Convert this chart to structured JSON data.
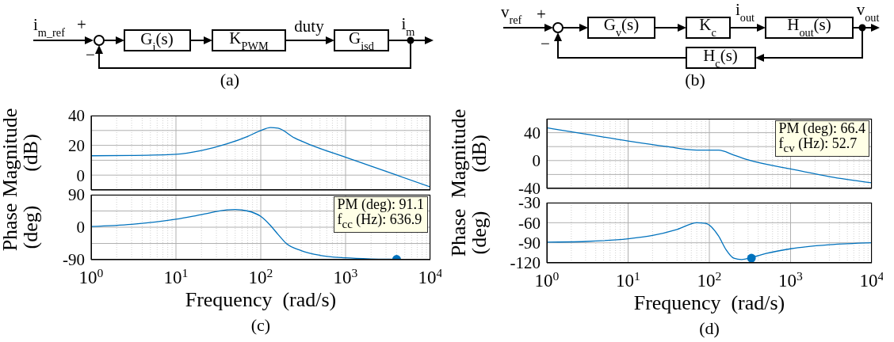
{
  "chart_data": [
    {
      "type": "other",
      "title": "(a)",
      "annotations": [
        "i$_{m_ref}$",
        "+",
        "−",
        "G$_{i}$(s)",
        "K$_{PWM}$",
        "duty",
        "G$_{isd}$",
        "i$_{m}$"
      ]
    },
    {
      "type": "other",
      "title": "(b)",
      "annotations": [
        "v$_{ref}$",
        "+",
        "−",
        "G$_{v}$(s)",
        "K$_{c}$",
        "i$_{out}$",
        "H$_{out}$(s)",
        "v$_{out}$",
        "H$_{c}$(s)"
      ]
    },
    {
      "type": "line",
      "ylabel": "Magnitude (dB)",
      "tick_labels": "y",
      "grid": true,
      "log": "x",
      "xlim": [
        1,
        10000
      ],
      "ylim": [
        -10,
        40
      ],
      "xticks": [
        1,
        {
          "value": 2,
          "label": null
        },
        {
          "value": 3,
          "label": null
        },
        {
          "value": 4,
          "label": null
        },
        {
          "value": 5,
          "label": null
        },
        {
          "value": 6,
          "label": null
        },
        {
          "value": 7,
          "label": null
        },
        {
          "value": 8,
          "label": null
        },
        {
          "value": 9,
          "label": null
        },
        10,
        {
          "value": 20,
          "label": null
        },
        {
          "value": 30,
          "label": null
        },
        {
          "value": 40,
          "label": null
        },
        {
          "value": 50,
          "label": null
        },
        {
          "value": 60,
          "label": null
        },
        {
          "value": 70,
          "label": null
        },
        {
          "value": 80,
          "label": null
        },
        {
          "value": 90,
          "label": null
        },
        100,
        {
          "value": 200,
          "label": null
        },
        {
          "value": 300,
          "label": null
        },
        {
          "value": 400,
          "label": null
        },
        {
          "value": 500,
          "label": null
        },
        {
          "value": 600,
          "label": null
        },
        {
          "value": 700,
          "label": null
        },
        {
          "value": 800,
          "label": null
        },
        {
          "value": 900,
          "label": null
        },
        1000,
        {
          "value": 2000,
          "label": null
        },
        {
          "value": 3000,
          "label": null
        },
        {
          "value": 4000,
          "label": null
        },
        {
          "value": 5000,
          "label": null
        },
        {
          "value": 6000,
          "label": null
        },
        {
          "value": 7000,
          "label": null
        },
        {
          "value": 8000,
          "label": null
        },
        {
          "value": 9000,
          "label": null
        },
        10000
      ],
      "yticks": [
        0,
        {
          "value": 10,
          "label": null
        },
        20,
        {
          "value": 30,
          "label": null
        },
        40
      ],
      "series": [
        {
          "type": "line",
          "color": "#0072bd",
          "x": [
            1,
            3,
            10,
            20,
            40,
            70,
            100,
            130,
            160,
            250,
            400,
            1000,
            2000,
            4000,
            10000
          ],
          "values": [
            13,
            13.2,
            14,
            16.5,
            21,
            26,
            30,
            32,
            31.5,
            25,
            20,
            12,
            6,
            0,
            -8
          ]
        }
      ]
    },
    {
      "type": "line",
      "title": "(c)",
      "ylabel": "Phase (deg)",
      "xlabel": "Frequency  (rad/s)",
      "grid": true,
      "log": "x",
      "xlim": [
        1,
        10000
      ],
      "ylim": [
        -90,
        90
      ],
      "xticks": [
        {
          "value": 1,
          "label": "10$^{0}$"
        },
        {
          "value": 2,
          "label": null
        },
        {
          "value": 3,
          "label": null
        },
        {
          "value": 4,
          "label": null
        },
        {
          "value": 5,
          "label": null
        },
        {
          "value": 6,
          "label": null
        },
        {
          "value": 7,
          "label": null
        },
        {
          "value": 8,
          "label": null
        },
        {
          "value": 9,
          "label": null
        },
        {
          "value": 10,
          "label": "10$^{1}$"
        },
        {
          "value": 20,
          "label": null
        },
        {
          "value": 30,
          "label": null
        },
        {
          "value": 40,
          "label": null
        },
        {
          "value": 50,
          "label": null
        },
        {
          "value": 60,
          "label": null
        },
        {
          "value": 70,
          "label": null
        },
        {
          "value": 80,
          "label": null
        },
        {
          "value": 90,
          "label": null
        },
        {
          "value": 100,
          "label": "10$^{2}$"
        },
        {
          "value": 200,
          "label": null
        },
        {
          "value": 300,
          "label": null
        },
        {
          "value": 400,
          "label": null
        },
        {
          "value": 500,
          "label": null
        },
        {
          "value": 600,
          "label": null
        },
        {
          "value": 700,
          "label": null
        },
        {
          "value": 800,
          "label": null
        },
        {
          "value": 900,
          "label": null
        },
        {
          "value": 1000,
          "label": "10$^{3}$"
        },
        {
          "value": 2000,
          "label": null
        },
        {
          "value": 3000,
          "label": null
        },
        {
          "value": 4000,
          "label": null
        },
        {
          "value": 5000,
          "label": null
        },
        {
          "value": 6000,
          "label": null
        },
        {
          "value": 7000,
          "label": null
        },
        {
          "value": 8000,
          "label": null
        },
        {
          "value": 9000,
          "label": null
        },
        {
          "value": 10000,
          "label": "10$^{4}$"
        }
      ],
      "yticks": [
        -90,
        {
          "value": -45,
          "label": null
        },
        0,
        {
          "value": 45,
          "label": null
        },
        90
      ],
      "annotations": [
        "PM (deg): 91.1",
        "f$_{cc}$ (Hz): 636.9"
      ],
      "series": [
        {
          "type": "line",
          "color": "#0072bd",
          "x": [
            1,
            3,
            10,
            20,
            40,
            50,
            70,
            100,
            130,
            160,
            200,
            300,
            500,
            1000,
            2000,
            4000,
            10000
          ],
          "values": [
            2,
            8,
            22,
            35,
            48,
            49,
            45,
            30,
            5,
            -20,
            -45,
            -65,
            -78,
            -85,
            -88,
            -89,
            -90
          ]
        },
        {
          "type": "scatter",
          "marker": "circle",
          "color": "#0072bd",
          "x": [
            4000
          ],
          "values": [
            -89
          ]
        }
      ]
    },
    {
      "type": "line",
      "ylabel": "Magnitude (dB)",
      "tick_labels": "y",
      "grid": true,
      "log": "x",
      "xlim": [
        1,
        10000
      ],
      "ylim": [
        -40,
        60
      ],
      "xticks": [
        1,
        {
          "value": 2,
          "label": null
        },
        {
          "value": 3,
          "label": null
        },
        {
          "value": 4,
          "label": null
        },
        {
          "value": 5,
          "label": null
        },
        {
          "value": 6,
          "label": null
        },
        {
          "value": 7,
          "label": null
        },
        {
          "value": 8,
          "label": null
        },
        {
          "value": 9,
          "label": null
        },
        10,
        {
          "value": 20,
          "label": null
        },
        {
          "value": 30,
          "label": null
        },
        {
          "value": 40,
          "label": null
        },
        {
          "value": 50,
          "label": null
        },
        {
          "value": 60,
          "label": null
        },
        {
          "value": 70,
          "label": null
        },
        {
          "value": 80,
          "label": null
        },
        {
          "value": 90,
          "label": null
        },
        100,
        {
          "value": 200,
          "label": null
        },
        {
          "value": 300,
          "label": null
        },
        {
          "value": 400,
          "label": null
        },
        {
          "value": 500,
          "label": null
        },
        {
          "value": 600,
          "label": null
        },
        {
          "value": 700,
          "label": null
        },
        {
          "value": 800,
          "label": null
        },
        {
          "value": 900,
          "label": null
        },
        1000,
        {
          "value": 2000,
          "label": null
        },
        {
          "value": 3000,
          "label": null
        },
        {
          "value": 4000,
          "label": null
        },
        {
          "value": 5000,
          "label": null
        },
        {
          "value": 6000,
          "label": null
        },
        {
          "value": 7000,
          "label": null
        },
        {
          "value": 8000,
          "label": null
        },
        {
          "value": 9000,
          "label": null
        },
        10000
      ],
      "yticks": [
        -40,
        {
          "value": -20,
          "label": null
        },
        0,
        {
          "value": 20,
          "label": null
        },
        40,
        {
          "value": 60,
          "label": null
        }
      ],
      "annotations": [
        "PM (deg): 66.4",
        "f$_{cv}$ (Hz): 52.7"
      ],
      "series": [
        {
          "type": "line",
          "color": "#0072bd",
          "x": [
            1,
            3,
            10,
            30,
            70,
            130,
            200,
            300,
            1000,
            3000,
            10000
          ],
          "values": [
            47,
            38,
            28,
            20,
            15,
            15,
            8,
            1,
            -12,
            -23,
            -32
          ]
        }
      ]
    },
    {
      "type": "line",
      "title": "(d)",
      "ylabel": "Phase (deg)",
      "xlabel": "Frequency  (rad/s)",
      "grid": true,
      "log": "x",
      "xlim": [
        1,
        10000
      ],
      "ylim": [
        -120,
        -30
      ],
      "xticks": [
        {
          "value": 1,
          "label": "10$^{0}$"
        },
        {
          "value": 2,
          "label": null
        },
        {
          "value": 3,
          "label": null
        },
        {
          "value": 4,
          "label": null
        },
        {
          "value": 5,
          "label": null
        },
        {
          "value": 6,
          "label": null
        },
        {
          "value": 7,
          "label": null
        },
        {
          "value": 8,
          "label": null
        },
        {
          "value": 9,
          "label": null
        },
        {
          "value": 10,
          "label": "10$^{1}$"
        },
        {
          "value": 20,
          "label": null
        },
        {
          "value": 30,
          "label": null
        },
        {
          "value": 40,
          "label": null
        },
        {
          "value": 50,
          "label": null
        },
        {
          "value": 60,
          "label": null
        },
        {
          "value": 70,
          "label": null
        },
        {
          "value": 80,
          "label": null
        },
        {
          "value": 90,
          "label": null
        },
        {
          "value": 100,
          "label": "10$^{2}$"
        },
        {
          "value": 200,
          "label": null
        },
        {
          "value": 300,
          "label": null
        },
        {
          "value": 400,
          "label": null
        },
        {
          "value": 500,
          "label": null
        },
        {
          "value": 600,
          "label": null
        },
        {
          "value": 700,
          "label": null
        },
        {
          "value": 800,
          "label": null
        },
        {
          "value": 900,
          "label": null
        },
        {
          "value": 1000,
          "label": "10$^{3}$"
        },
        {
          "value": 2000,
          "label": null
        },
        {
          "value": 3000,
          "label": null
        },
        {
          "value": 4000,
          "label": null
        },
        {
          "value": 5000,
          "label": null
        },
        {
          "value": 6000,
          "label": null
        },
        {
          "value": 7000,
          "label": null
        },
        {
          "value": 8000,
          "label": null
        },
        {
          "value": 9000,
          "label": null
        },
        {
          "value": 10000,
          "label": "10$^{4}$"
        }
      ],
      "yticks": [
        -120,
        -90,
        -60,
        -30
      ],
      "series": [
        {
          "type": "line",
          "color": "#0072bd",
          "x": [
            1,
            3,
            10,
            20,
            40,
            70,
            90,
            130,
            160,
            200,
            250,
            330,
            500,
            1000,
            3000,
            10000
          ],
          "values": [
            -89,
            -88,
            -84,
            -79,
            -70,
            -60,
            -61,
            -80,
            -100,
            -113,
            -115,
            -112,
            -106,
            -99,
            -93,
            -90
          ]
        },
        {
          "type": "scatter",
          "marker": "circle",
          "color": "#0072bd",
          "x": [
            330
          ],
          "values": [
            -113
          ]
        }
      ]
    }
  ]
}
